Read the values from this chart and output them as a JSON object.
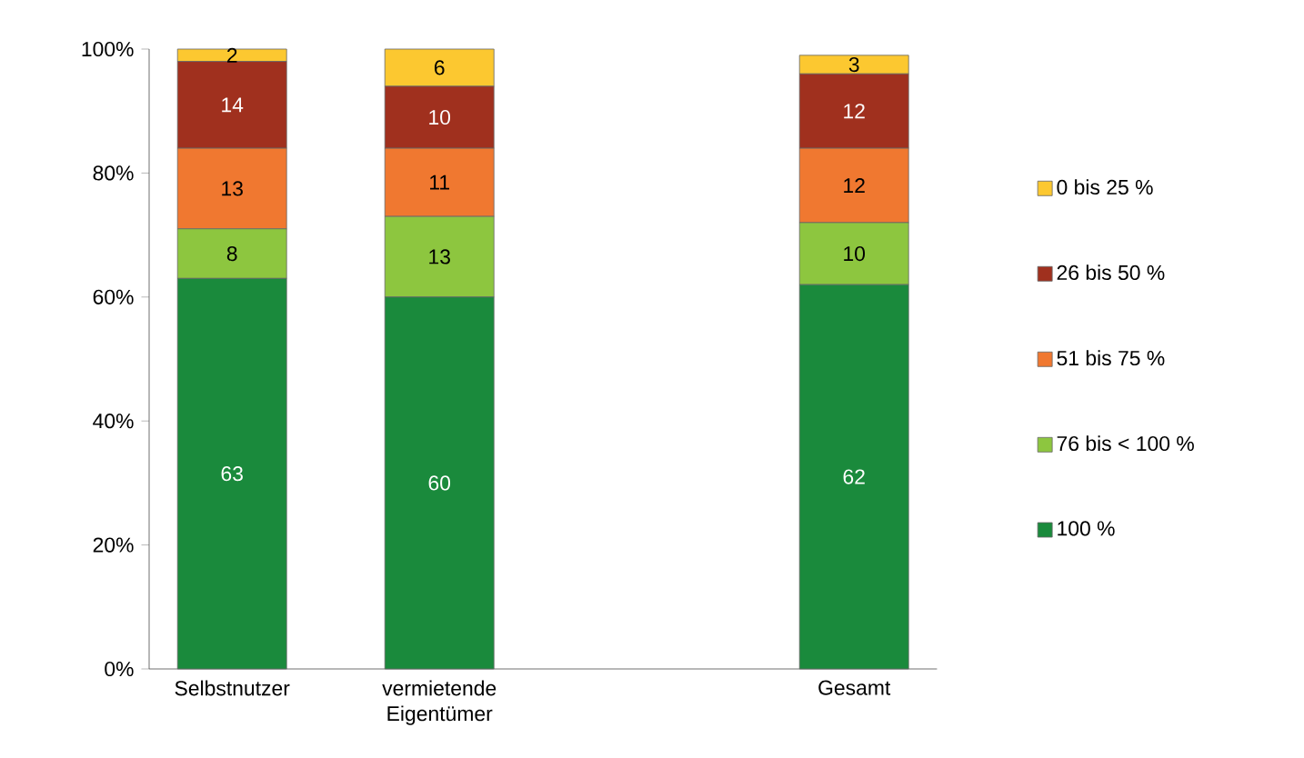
{
  "chart_data": {
    "type": "bar",
    "stacked": true,
    "categories": [
      "Selbstnutzer",
      "vermietende Eigentümer",
      null,
      "Gesamt"
    ],
    "series": [
      {
        "name": "100 %",
        "color": "#1a8a3c",
        "values": [
          63,
          60,
          null,
          62
        ]
      },
      {
        "name": "76 bis < 100 %",
        "color": "#8dc63f",
        "values": [
          8,
          13,
          null,
          10
        ]
      },
      {
        "name": "51 bis 75 %",
        "color": "#f07830",
        "values": [
          13,
          11,
          null,
          12
        ]
      },
      {
        "name": "26 bis 50 %",
        "color": "#a0301e",
        "values": [
          14,
          10,
          null,
          12
        ]
      },
      {
        "name": "0 bis 25 %",
        "color": "#fcc830",
        "values": [
          2,
          6,
          null,
          3
        ]
      }
    ],
    "ylim": [
      0,
      100
    ],
    "yticks": [
      {
        "value": 0,
        "label": "0%"
      },
      {
        "value": 20,
        "label": "20%"
      },
      {
        "value": 40,
        "label": "40%"
      },
      {
        "value": 60,
        "label": "60%"
      },
      {
        "value": 80,
        "label": "80%"
      },
      {
        "value": 100,
        "label": "100%"
      }
    ],
    "data_labels": true,
    "legend": "right",
    "grid": false
  }
}
